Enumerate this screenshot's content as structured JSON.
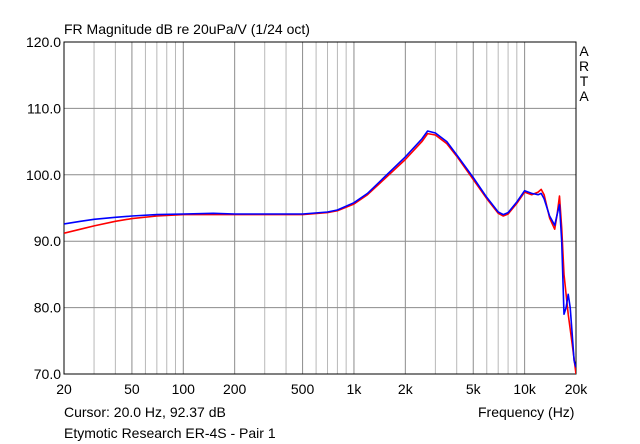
{
  "chart_data": {
    "type": "line",
    "title": "FR Magnitude dB re 20uPa/V (1/24 oct)",
    "xlabel": "Frequency (Hz)",
    "ylabel": "",
    "xscale": "log",
    "xlim": [
      20,
      20000
    ],
    "ylim": [
      70,
      120
    ],
    "grid": true,
    "xticks": [
      {
        "value": 20,
        "label": "20"
      },
      {
        "value": 50,
        "label": "50"
      },
      {
        "value": 100,
        "label": "100"
      },
      {
        "value": 200,
        "label": "200"
      },
      {
        "value": 500,
        "label": "500"
      },
      {
        "value": 1000,
        "label": "1k"
      },
      {
        "value": 2000,
        "label": "2k"
      },
      {
        "value": 5000,
        "label": "5k"
      },
      {
        "value": 10000,
        "label": "10k"
      },
      {
        "value": 20000,
        "label": "20k"
      }
    ],
    "yticks": [
      {
        "value": 70,
        "label": "70.0"
      },
      {
        "value": 80,
        "label": "80.0"
      },
      {
        "value": 90,
        "label": "90.0"
      },
      {
        "value": 100,
        "label": "100.0"
      },
      {
        "value": 110,
        "label": "110.0"
      },
      {
        "value": 120,
        "label": "120.0"
      }
    ],
    "series": [
      {
        "color": "#ff0000",
        "x": [
          20,
          25,
          30,
          40,
          50,
          70,
          100,
          150,
          200,
          300,
          500,
          700,
          800,
          1000,
          1200,
          1500,
          2000,
          2500,
          2700,
          3000,
          3500,
          4000,
          5000,
          6000,
          7000,
          7500,
          8000,
          9000,
          10000,
          11000,
          12000,
          12500,
          13000,
          14000,
          15000,
          15500,
          16000,
          16500,
          17000,
          18000,
          19000,
          20000
        ],
        "y": [
          91.2,
          91.8,
          92.3,
          93.0,
          93.4,
          93.8,
          94.0,
          94.0,
          94.0,
          94.0,
          94.0,
          94.3,
          94.6,
          95.6,
          97.0,
          99.3,
          102.3,
          105.0,
          106.2,
          106.0,
          104.7,
          102.8,
          99.3,
          96.4,
          94.2,
          93.8,
          94.1,
          95.7,
          97.4,
          97.0,
          97.4,
          97.8,
          97.0,
          93.5,
          91.8,
          94.0,
          96.8,
          92.0,
          85.0,
          79.0,
          74.5,
          70.0
        ]
      },
      {
        "color": "#0000ff",
        "x": [
          20,
          25,
          30,
          40,
          50,
          70,
          100,
          150,
          200,
          300,
          500,
          700,
          800,
          1000,
          1200,
          1500,
          2000,
          2500,
          2700,
          3000,
          3500,
          4000,
          5000,
          6000,
          7000,
          7500,
          8000,
          9000,
          10000,
          11000,
          12000,
          12500,
          13000,
          14000,
          15000,
          15500,
          16000,
          16500,
          17000,
          17500,
          18000,
          18500,
          19000,
          19500,
          20000
        ],
        "y": [
          92.6,
          93.0,
          93.3,
          93.6,
          93.8,
          94.0,
          94.1,
          94.2,
          94.1,
          94.1,
          94.1,
          94.4,
          94.7,
          95.8,
          97.2,
          99.6,
          102.7,
          105.4,
          106.6,
          106.3,
          105.0,
          103.0,
          99.6,
          96.6,
          94.4,
          94.0,
          94.3,
          95.9,
          97.6,
          97.2,
          97.0,
          97.2,
          96.4,
          93.8,
          92.4,
          94.0,
          95.5,
          90.0,
          79.0,
          80.0,
          82.0,
          80.0,
          76.0,
          72.0,
          71.0
        ]
      }
    ]
  },
  "header": {
    "brand": [
      "A",
      "R",
      "T",
      "A"
    ]
  },
  "footer": {
    "cursor_readout": "Cursor: 20.0 Hz, 92.37 dB",
    "device_name": "Etymotic Research ER-4S - Pair 1"
  }
}
